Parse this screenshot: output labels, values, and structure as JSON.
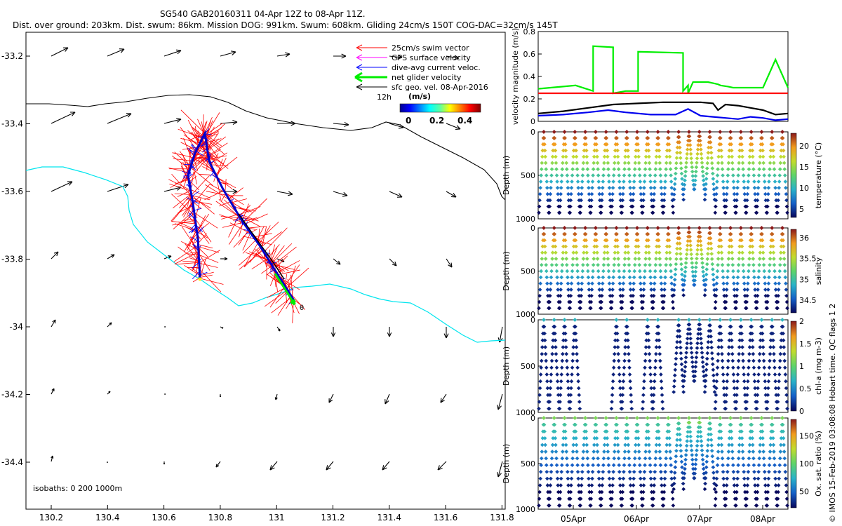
{
  "title_line1": "SG540 GAB20160311 04-Apr 12Z to 08-Apr 11Z.",
  "title_line2": "Dist. over ground: 203km. Dist. swum: 86km. Mission DOG: 991km. Swum: 608km. Gliding 24cm/s 150T COG-DAC=32cm/s 145T",
  "map": {
    "x_ticks": [
      "130.2",
      "130.4",
      "130.6",
      "130.8",
      "131",
      "131.2",
      "131.4",
      "131.6",
      "131.8"
    ],
    "y_ticks": [
      "-33.2",
      "-33.4",
      "-33.6",
      "-33.8",
      "-34",
      "-34.2",
      "-34.4"
    ],
    "isobaths_label": "isobaths: 0   200   1000m",
    "marker_label": "θ",
    "colorbar_unit": "(m/s)",
    "colorbar_ticks": [
      "0",
      "0.2",
      "0.4"
    ],
    "legend": {
      "swim": "25cm/s swim vector",
      "gps": "GPS surface velocity",
      "dac": "dive-avg current veloc.",
      "net": "net glider velocity",
      "sfc": "sfc geo. vel. 08-Apr-2016",
      "twelve_h": "12h"
    },
    "colors": {
      "swim": "#ff0000",
      "gps": "#ff00ff",
      "dac": "#0000ff",
      "net": "#00ff00",
      "sfc": "#000000",
      "isobath_shallow": "#00e5ee",
      "isobath_deep": "#000000"
    }
  },
  "chart_data": [
    {
      "type": "line",
      "ylabel": "velocity magnitude (m/s)",
      "ylim": [
        0,
        0.8
      ],
      "y_ticks": [
        "0",
        "0.2",
        "0.4",
        "0.6",
        "0.8"
      ],
      "series": [
        {
          "color": "#00ee00",
          "x": [
            0,
            0.05,
            0.15,
            0.22,
            0.22,
            0.3,
            0.3,
            0.35,
            0.4,
            0.4,
            0.58,
            0.58,
            0.6,
            0.6,
            0.62,
            0.68,
            0.72,
            0.73,
            0.76,
            0.78,
            0.82,
            0.85,
            0.9,
            0.95,
            1.0
          ],
          "values": [
            0.29,
            0.3,
            0.32,
            0.27,
            0.67,
            0.66,
            0.25,
            0.27,
            0.27,
            0.62,
            0.61,
            0.27,
            0.32,
            0.25,
            0.35,
            0.35,
            0.33,
            0.32,
            0.31,
            0.3,
            0.3,
            0.3,
            0.3,
            0.55,
            0.3
          ]
        },
        {
          "color": "#ff0000",
          "x": [
            0,
            1
          ],
          "values": [
            0.25,
            0.25
          ]
        },
        {
          "color": "#000000",
          "x": [
            0,
            0.1,
            0.2,
            0.3,
            0.4,
            0.5,
            0.55,
            0.6,
            0.65,
            0.7,
            0.72,
            0.75,
            0.8,
            0.85,
            0.9,
            0.95,
            1.0
          ],
          "values": [
            0.07,
            0.09,
            0.12,
            0.15,
            0.16,
            0.17,
            0.17,
            0.17,
            0.17,
            0.16,
            0.1,
            0.15,
            0.14,
            0.12,
            0.1,
            0.06,
            0.07
          ]
        },
        {
          "color": "#0000ee",
          "x": [
            0,
            0.1,
            0.2,
            0.28,
            0.35,
            0.45,
            0.55,
            0.6,
            0.65,
            0.7,
            0.75,
            0.8,
            0.85,
            0.9,
            0.95,
            1.0
          ],
          "values": [
            0.05,
            0.06,
            0.08,
            0.1,
            0.08,
            0.06,
            0.06,
            0.11,
            0.05,
            0.04,
            0.03,
            0.02,
            0.04,
            0.03,
            0.01,
            0.02
          ]
        }
      ]
    },
    {
      "type": "scatter",
      "ylabel": "Depth (m)",
      "cbar_label": "temperature (°C)",
      "ylim": [
        1000,
        0
      ],
      "y_ticks": [
        "0",
        "500",
        "1000"
      ],
      "cbar_ticks": [
        "5",
        "10",
        "15",
        "20"
      ],
      "cbar_range": [
        3,
        23
      ],
      "cbar_colors": [
        "#08085c",
        "#1560c8",
        "#2ab3c8",
        "#5ed46a",
        "#c2dc2e",
        "#f29c1e",
        "#8b1a1a"
      ]
    },
    {
      "type": "scatter",
      "ylabel": "Depth (m)",
      "cbar_label": "salinity",
      "ylim": [
        1000,
        0
      ],
      "y_ticks": [
        "0",
        "500",
        "1000"
      ],
      "cbar_ticks": [
        "34.5",
        "35",
        "35.5",
        "36"
      ],
      "cbar_range": [
        34.2,
        36.2
      ],
      "cbar_colors": [
        "#08085c",
        "#1560c8",
        "#2ab3c8",
        "#5ed46a",
        "#c2dc2e",
        "#f29c1e",
        "#8b1a1a"
      ]
    },
    {
      "type": "scatter",
      "ylabel": "Depth (m)",
      "cbar_label": "chl-a (mg m-3)",
      "ylim": [
        1000,
        0
      ],
      "y_ticks": [
        "0",
        "500",
        "1000"
      ],
      "cbar_ticks": [
        "0",
        "0.5",
        "1",
        "1.5",
        "2"
      ],
      "cbar_range": [
        0,
        2
      ],
      "cbar_colors": [
        "#08085c",
        "#1560c8",
        "#2ab3c8",
        "#5ed46a",
        "#c2dc2e",
        "#f29c1e",
        "#8b1a1a"
      ]
    },
    {
      "type": "scatter",
      "ylabel": "Depth (m)",
      "cbar_label": "Ox. sat. ratio (%)",
      "ylim": [
        1000,
        0
      ],
      "y_ticks": [
        "0",
        "500",
        "1000"
      ],
      "cbar_ticks": [
        "50",
        "100",
        "150"
      ],
      "cbar_range": [
        20,
        180
      ],
      "cbar_colors": [
        "#08085c",
        "#1560c8",
        "#2ab3c8",
        "#5ed46a",
        "#c2dc2e",
        "#f29c1e",
        "#8b1a1a"
      ],
      "x_ticks": [
        "05Apr",
        "06Apr",
        "07Apr",
        "08Apr"
      ]
    }
  ],
  "side_note": "© IMOS 15-Feb-2019 03:08:08 Hobart time. QC flags 1  2"
}
